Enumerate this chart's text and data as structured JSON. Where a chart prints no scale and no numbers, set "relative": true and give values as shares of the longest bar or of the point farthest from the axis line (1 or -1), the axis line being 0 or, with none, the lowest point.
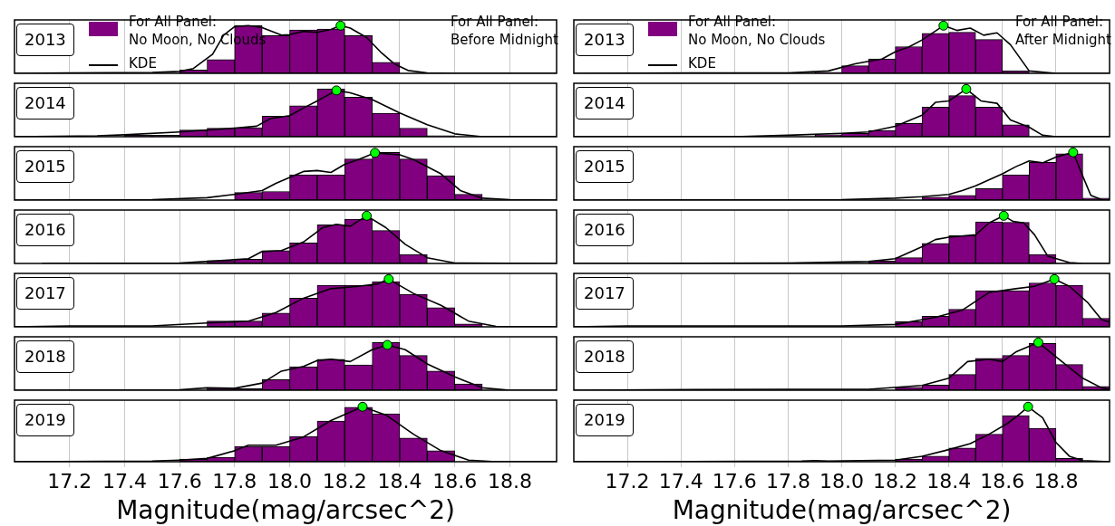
{
  "chart_data": [
    {
      "type": "histogram",
      "relative": true,
      "grid": "x",
      "tick_labels": false,
      "legend": "top left",
      "xlim": [
        17.0,
        18.97
      ],
      "xticks": [
        17.2,
        17.4,
        17.6,
        17.8,
        18,
        18.2,
        18.4,
        18.6,
        18.8
      ],
      "annotations": [
        "2013",
        "For All Panel:\nBefore Midnight"
      ],
      "bins": [
        17.6,
        17.7,
        17.8,
        17.9,
        18.0,
        18.1,
        18.2,
        18.3,
        18.4
      ],
      "series": [
        {
          "type": "histogram",
          "name": "For All Panel:\nNo Moon, No Clouds",
          "color": "#800080",
          "values": [
            0.07,
            0.29,
            1.0,
            0.79,
            0.91,
            0.93,
            0.79,
            0.23
          ]
        },
        {
          "type": "line",
          "name": "KDE",
          "color": "#000000",
          "line_style": "solid",
          "x": [
            17.0,
            17.2,
            17.5,
            17.6,
            17.65,
            17.72,
            17.76,
            17.8,
            17.85,
            17.9,
            17.97,
            18.0,
            18.05,
            18.1,
            18.15,
            18.185,
            18.22,
            18.28,
            18.33,
            18.38,
            18.43,
            18.5,
            18.6,
            18.97
          ],
          "values": [
            0,
            0.01,
            0.02,
            0.04,
            0.1,
            0.4,
            0.8,
            0.98,
            1.0,
            0.96,
            0.8,
            0.81,
            0.88,
            0.86,
            0.92,
            1.0,
            0.95,
            0.75,
            0.45,
            0.2,
            0.06,
            0.01,
            0,
            0
          ]
        },
        {
          "type": "scatter",
          "color": "#00ff00",
          "marker": "circle",
          "x": [
            18.185
          ],
          "values": [
            1.0
          ]
        }
      ]
    },
    {
      "type": "histogram",
      "relative": true,
      "grid": "x",
      "tick_labels": false,
      "xlim": [
        17.0,
        18.97
      ],
      "xticks": [
        17.2,
        17.4,
        17.6,
        17.8,
        18,
        18.2,
        18.4,
        18.6,
        18.8
      ],
      "annotations": [
        "2014"
      ],
      "bins": [
        17.4,
        17.5,
        17.6,
        17.7,
        17.8,
        17.9,
        18.0,
        18.1,
        18.2,
        18.3,
        18.4,
        18.5,
        18.6
      ],
      "series": [
        {
          "type": "histogram",
          "color": "#800080",
          "values": [
            0.03,
            0.03,
            0.14,
            0.18,
            0.19,
            0.43,
            0.65,
            1.0,
            0.83,
            0.49,
            0.18,
            0.02
          ]
        },
        {
          "type": "line",
          "color": "#000000",
          "line_style": "solid",
          "x": [
            17.0,
            17.3,
            17.4,
            17.6,
            17.8,
            17.88,
            17.93,
            18.0,
            18.05,
            18.1,
            18.17,
            18.22,
            18.3,
            18.4,
            18.5,
            18.6,
            18.7,
            18.97
          ],
          "values": [
            0,
            0.02,
            0.04,
            0.1,
            0.18,
            0.22,
            0.38,
            0.44,
            0.6,
            0.75,
            0.97,
            0.92,
            0.78,
            0.5,
            0.25,
            0.06,
            0,
            0
          ]
        },
        {
          "type": "scatter",
          "color": "#00ff00",
          "marker": "circle",
          "x": [
            18.17
          ],
          "values": [
            0.97
          ]
        }
      ]
    },
    {
      "type": "histogram",
      "relative": true,
      "grid": "x",
      "tick_labels": false,
      "xlim": [
        17.0,
        18.97
      ],
      "xticks": [
        17.2,
        17.4,
        17.6,
        17.8,
        18,
        18.2,
        18.4,
        18.6,
        18.8
      ],
      "annotations": [
        "2015"
      ],
      "bins": [
        17.8,
        17.9,
        18.0,
        18.1,
        18.2,
        18.3,
        18.4,
        18.5,
        18.6,
        18.7
      ],
      "series": [
        {
          "type": "histogram",
          "color": "#800080",
          "values": [
            0.16,
            0.18,
            0.53,
            0.53,
            0.86,
            1.0,
            0.86,
            0.51,
            0.12
          ]
        },
        {
          "type": "line",
          "color": "#000000",
          "line_style": "solid",
          "x": [
            17.0,
            17.5,
            17.7,
            17.8,
            17.9,
            17.95,
            18.05,
            18.1,
            18.15,
            18.2,
            18.25,
            18.31,
            18.4,
            18.45,
            18.55,
            18.62,
            18.7,
            18.8,
            18.97
          ],
          "values": [
            0,
            0.01,
            0.05,
            0.12,
            0.2,
            0.35,
            0.6,
            0.62,
            0.58,
            0.75,
            0.85,
            0.99,
            0.95,
            0.85,
            0.55,
            0.2,
            0.04,
            0.01,
            0
          ]
        },
        {
          "type": "scatter",
          "color": "#00ff00",
          "marker": "circle",
          "x": [
            18.31
          ],
          "values": [
            0.99
          ]
        }
      ]
    },
    {
      "type": "histogram",
      "relative": true,
      "grid": "x",
      "tick_labels": false,
      "xlim": [
        17.0,
        18.97
      ],
      "xticks": [
        17.2,
        17.4,
        17.6,
        17.8,
        18,
        18.2,
        18.4,
        18.6,
        18.8
      ],
      "annotations": [
        "2016"
      ],
      "bins": [
        17.7,
        17.8,
        17.9,
        18.0,
        18.1,
        18.2,
        18.3,
        18.4,
        18.5
      ],
      "series": [
        {
          "type": "histogram",
          "color": "#800080",
          "values": [
            0.06,
            0.09,
            0.27,
            0.43,
            0.81,
            0.93,
            0.69,
            0.19
          ]
        },
        {
          "type": "line",
          "color": "#000000",
          "line_style": "solid",
          "x": [
            17.1,
            17.6,
            17.75,
            17.85,
            17.9,
            17.97,
            18.05,
            18.12,
            18.17,
            18.22,
            18.28,
            18.35,
            18.42,
            18.5,
            18.6,
            18.97
          ],
          "values": [
            0,
            0.01,
            0.06,
            0.1,
            0.25,
            0.27,
            0.45,
            0.75,
            0.82,
            0.78,
            1.0,
            0.75,
            0.4,
            0.12,
            0.01,
            0
          ]
        },
        {
          "type": "scatter",
          "color": "#00ff00",
          "marker": "circle",
          "x": [
            18.28
          ],
          "values": [
            1.0
          ]
        }
      ]
    },
    {
      "type": "histogram",
      "relative": true,
      "grid": "x",
      "tick_labels": false,
      "xlim": [
        17.0,
        18.97
      ],
      "xticks": [
        17.2,
        17.4,
        17.6,
        17.8,
        18,
        18.2,
        18.4,
        18.6,
        18.8
      ],
      "annotations": [
        "2017"
      ],
      "bins": [
        17.7,
        17.8,
        17.9,
        18.0,
        18.1,
        18.2,
        18.3,
        18.4,
        18.5,
        18.6,
        18.7
      ],
      "series": [
        {
          "type": "histogram",
          "color": "#800080",
          "values": [
            0.12,
            0.12,
            0.29,
            0.6,
            0.87,
            0.87,
            0.95,
            0.68,
            0.4,
            0.06
          ]
        },
        {
          "type": "line",
          "color": "#000000",
          "line_style": "solid",
          "x": [
            17.0,
            17.2,
            17.5,
            17.7,
            17.85,
            17.95,
            18.05,
            18.15,
            18.25,
            18.32,
            18.36,
            18.45,
            18.55,
            18.65,
            18.75,
            18.97
          ],
          "values": [
            0,
            0.02,
            0.02,
            0.08,
            0.12,
            0.3,
            0.6,
            0.8,
            0.85,
            0.9,
            1.0,
            0.7,
            0.45,
            0.12,
            0.01,
            0
          ]
        },
        {
          "type": "scatter",
          "color": "#00ff00",
          "marker": "circle",
          "x": [
            18.36
          ],
          "values": [
            1.0
          ]
        }
      ]
    },
    {
      "type": "histogram",
      "relative": true,
      "grid": "x",
      "tick_labels": false,
      "xlim": [
        17.0,
        18.97
      ],
      "xticks": [
        17.2,
        17.4,
        17.6,
        17.8,
        18,
        18.2,
        18.4,
        18.6,
        18.8
      ],
      "annotations": [
        "2018"
      ],
      "bins": [
        17.7,
        17.8,
        17.9,
        18.0,
        18.1,
        18.2,
        18.3,
        18.4,
        18.5,
        18.6,
        18.7
      ],
      "series": [
        {
          "type": "histogram",
          "color": "#800080",
          "values": [
            0.04,
            0.03,
            0.22,
            0.49,
            0.65,
            0.53,
            1.0,
            0.73,
            0.4,
            0.13
          ]
        },
        {
          "type": "line",
          "color": "#000000",
          "line_style": "solid",
          "x": [
            17.0,
            17.6,
            17.7,
            17.8,
            17.9,
            17.97,
            18.05,
            18.1,
            18.15,
            18.22,
            18.3,
            18.355,
            18.42,
            18.5,
            18.6,
            18.7,
            18.8,
            18.97
          ],
          "values": [
            0,
            0.01,
            0.05,
            0.04,
            0.15,
            0.4,
            0.5,
            0.62,
            0.65,
            0.6,
            0.85,
            0.95,
            0.85,
            0.55,
            0.28,
            0.05,
            0,
            0
          ]
        },
        {
          "type": "scatter",
          "color": "#00ff00",
          "marker": "circle",
          "x": [
            18.355
          ],
          "values": [
            0.95
          ]
        }
      ]
    },
    {
      "type": "histogram",
      "relative": true,
      "grid": "x",
      "tick_labels": "x",
      "xlim": [
        17.0,
        18.97
      ],
      "xticks": [
        17.2,
        17.4,
        17.6,
        17.8,
        {
          "value": 18,
          "label": "18.0"
        },
        18.2,
        18.4,
        18.6,
        18.8
      ],
      "xlabel": "Magnitude(mag/arcsec^2)",
      "annotations": [
        "2019"
      ],
      "bins": [
        17.6,
        17.7,
        17.8,
        17.9,
        18.0,
        18.1,
        18.2,
        18.3,
        18.4,
        18.5,
        18.6
      ],
      "series": [
        {
          "type": "histogram",
          "color": "#800080",
          "values": [
            0.05,
            0.08,
            0.28,
            0.28,
            0.46,
            0.74,
            0.99,
            0.87,
            0.43,
            0.2
          ]
        },
        {
          "type": "line",
          "color": "#000000",
          "line_style": "solid",
          "x": [
            17.0,
            17.5,
            17.6,
            17.7,
            17.8,
            17.85,
            17.95,
            18.05,
            18.15,
            18.265,
            18.35,
            18.45,
            18.55,
            18.65,
            18.75,
            18.97
          ],
          "values": [
            0,
            0.01,
            0.03,
            0.06,
            0.2,
            0.3,
            0.3,
            0.45,
            0.75,
            1.0,
            0.85,
            0.5,
            0.2,
            0.03,
            0,
            0
          ]
        },
        {
          "type": "scatter",
          "color": "#00ff00",
          "marker": "circle",
          "x": [
            18.265
          ],
          "values": [
            1.0
          ]
        }
      ]
    },
    {
      "type": "histogram",
      "relative": true,
      "grid": "x",
      "tick_labels": false,
      "legend": "top left",
      "xlim": [
        17.0,
        19.0
      ],
      "xticks": [
        17.2,
        17.4,
        17.6,
        17.8,
        18,
        18.2,
        18.4,
        18.6,
        18.8
      ],
      "annotations": [
        "2013",
        "For All Panel:\nAfter Midnight"
      ],
      "bins": [
        17.9,
        18.0,
        18.1,
        18.2,
        18.3,
        18.4,
        18.5,
        18.6,
        18.7
      ],
      "series": [
        {
          "type": "histogram",
          "name": "For All Panel:\nNo Moon, No Clouds",
          "color": "#800080",
          "values": [
            0.02,
            0.16,
            0.3,
            0.56,
            0.84,
            0.86,
            0.71,
            0.05
          ]
        },
        {
          "type": "line",
          "name": "KDE",
          "color": "#000000",
          "line_style": "solid",
          "x": [
            17.0,
            17.5,
            17.8,
            17.95,
            18.05,
            18.1,
            18.15,
            18.2,
            18.25,
            18.3,
            18.38,
            18.43,
            18.48,
            18.53,
            18.58,
            18.63,
            18.7,
            18.8,
            19.0
          ],
          "values": [
            0,
            0.01,
            0.01,
            0.05,
            0.2,
            0.25,
            0.3,
            0.45,
            0.55,
            0.7,
            1.0,
            0.9,
            0.95,
            0.8,
            0.85,
            0.6,
            0.05,
            0,
            0
          ]
        },
        {
          "type": "scatter",
          "color": "#00ff00",
          "marker": "circle",
          "x": [
            18.38
          ],
          "values": [
            1.0
          ]
        }
      ]
    },
    {
      "type": "histogram",
      "relative": true,
      "grid": "x",
      "tick_labels": false,
      "xlim": [
        17.0,
        19.0
      ],
      "xticks": [
        17.2,
        17.4,
        17.6,
        17.8,
        18,
        18.2,
        18.4,
        18.6,
        18.8
      ],
      "annotations": [
        "2014"
      ],
      "bins": [
        17.9,
        18.0,
        18.1,
        18.2,
        18.3,
        18.4,
        18.5,
        18.6,
        18.7
      ],
      "series": [
        {
          "type": "histogram",
          "color": "#800080",
          "values": [
            0.04,
            0.07,
            0.13,
            0.28,
            0.62,
            0.86,
            0.62,
            0.25
          ]
        },
        {
          "type": "line",
          "color": "#000000",
          "line_style": "solid",
          "x": [
            17.0,
            17.6,
            17.8,
            18.0,
            18.1,
            18.2,
            18.3,
            18.35,
            18.4,
            18.465,
            18.52,
            18.58,
            18.63,
            18.7,
            18.75,
            18.8,
            19.0
          ],
          "values": [
            0,
            0,
            0.03,
            0.07,
            0.1,
            0.22,
            0.45,
            0.72,
            0.75,
            1.0,
            0.75,
            0.7,
            0.35,
            0.2,
            0.03,
            0,
            0
          ]
        },
        {
          "type": "scatter",
          "color": "#00ff00",
          "marker": "circle",
          "x": [
            18.465
          ],
          "values": [
            1.0
          ]
        }
      ]
    },
    {
      "type": "histogram",
      "relative": true,
      "grid": "x",
      "tick_labels": false,
      "xlim": [
        17.0,
        19.0
      ],
      "xticks": [
        17.2,
        17.4,
        17.6,
        17.8,
        18,
        18.2,
        18.4,
        18.6,
        18.8
      ],
      "annotations": [
        "2015"
      ],
      "bins": [
        18.3,
        18.4,
        18.5,
        18.6,
        18.7,
        18.8,
        18.9,
        19.0
      ],
      "series": [
        {
          "type": "histogram",
          "color": "#800080",
          "values": [
            0.06,
            0.1,
            0.24,
            0.53,
            0.79,
            0.97,
            0.04
          ]
        },
        {
          "type": "line",
          "color": "#000000",
          "line_style": "solid",
          "x": [
            17.0,
            18.0,
            18.2,
            18.3,
            18.4,
            18.45,
            18.5,
            18.6,
            18.65,
            18.7,
            18.75,
            18.8,
            18.864,
            18.9,
            18.93,
            18.97,
            19.0
          ],
          "values": [
            0,
            0.01,
            0.04,
            0.07,
            0.12,
            0.2,
            0.3,
            0.55,
            0.7,
            0.82,
            0.78,
            0.9,
            1.0,
            0.5,
            0.1,
            0.01,
            0
          ]
        },
        {
          "type": "scatter",
          "color": "#00ff00",
          "marker": "circle",
          "x": [
            18.864
          ],
          "values": [
            1.0
          ]
        }
      ]
    },
    {
      "type": "histogram",
      "relative": true,
      "grid": "x",
      "tick_labels": false,
      "xlim": [
        17.0,
        19.0
      ],
      "xticks": [
        17.2,
        17.4,
        17.6,
        17.8,
        18,
        18.2,
        18.4,
        18.6,
        18.8
      ],
      "annotations": [
        "2016"
      ],
      "bins": [
        18.1,
        18.2,
        18.3,
        18.4,
        18.5,
        18.6,
        18.7,
        18.8,
        18.9
      ],
      "series": [
        {
          "type": "histogram",
          "color": "#800080",
          "values": [
            0.05,
            0.12,
            0.42,
            0.58,
            0.87,
            0.86,
            0.19,
            0.01
          ]
        },
        {
          "type": "line",
          "color": "#000000",
          "line_style": "solid",
          "x": [
            17.0,
            17.8,
            18.1,
            18.2,
            18.3,
            18.35,
            18.4,
            18.5,
            18.55,
            18.605,
            18.64,
            18.68,
            18.72,
            18.77,
            18.85,
            18.9,
            19.0
          ],
          "values": [
            0,
            0.01,
            0.04,
            0.1,
            0.35,
            0.5,
            0.55,
            0.6,
            0.85,
            1.0,
            0.88,
            0.85,
            0.6,
            0.15,
            0.02,
            0,
            0
          ]
        },
        {
          "type": "scatter",
          "color": "#00ff00",
          "marker": "circle",
          "x": [
            18.605
          ],
          "values": [
            1.0
          ]
        }
      ]
    },
    {
      "type": "histogram",
      "relative": true,
      "grid": "x",
      "tick_labels": false,
      "xlim": [
        17.0,
        19.0
      ],
      "xticks": [
        17.2,
        17.4,
        17.6,
        17.8,
        18,
        18.2,
        18.4,
        18.6,
        18.8
      ],
      "annotations": [
        "2017"
      ],
      "bins": [
        18.2,
        18.3,
        18.4,
        18.5,
        18.6,
        18.7,
        18.8,
        18.9,
        19.0
      ],
      "series": [
        {
          "type": "histogram",
          "color": "#800080",
          "values": [
            0.11,
            0.22,
            0.37,
            0.76,
            0.76,
            0.92,
            0.87,
            0.18
          ]
        },
        {
          "type": "line",
          "color": "#000000",
          "line_style": "solid",
          "x": [
            17.0,
            17.2,
            17.5,
            18.0,
            18.2,
            18.35,
            18.45,
            18.55,
            18.65,
            18.72,
            18.794,
            18.85,
            18.92,
            18.97,
            19.0
          ],
          "values": [
            0,
            0.02,
            0.02,
            0.02,
            0.05,
            0.2,
            0.35,
            0.72,
            0.8,
            0.85,
            1.0,
            0.85,
            0.5,
            0.15,
            0.1
          ]
        },
        {
          "type": "scatter",
          "color": "#00ff00",
          "marker": "circle",
          "x": [
            18.794
          ],
          "values": [
            1.0
          ]
        }
      ]
    },
    {
      "type": "histogram",
      "relative": true,
      "grid": "x",
      "tick_labels": false,
      "xlim": [
        17.0,
        19.0
      ],
      "xticks": [
        17.2,
        17.4,
        17.6,
        17.8,
        18,
        18.2,
        18.4,
        18.6,
        18.8
      ],
      "annotations": [
        "2018"
      ],
      "bins": [
        18.2,
        18.3,
        18.4,
        18.5,
        18.6,
        18.7,
        18.8,
        18.9,
        19.0
      ],
      "series": [
        {
          "type": "histogram",
          "color": "#800080",
          "values": [
            0.06,
            0.11,
            0.33,
            0.67,
            0.73,
            0.98,
            0.54,
            0.08
          ]
        },
        {
          "type": "line",
          "color": "#000000",
          "line_style": "solid",
          "x": [
            17.0,
            17.8,
            18.1,
            18.3,
            18.4,
            18.47,
            18.55,
            18.6,
            18.65,
            18.734,
            18.8,
            18.9,
            18.97,
            19.0
          ],
          "values": [
            0,
            0.02,
            0.02,
            0.1,
            0.25,
            0.6,
            0.65,
            0.6,
            0.8,
            1.0,
            0.7,
            0.25,
            0.05,
            0.02
          ]
        },
        {
          "type": "scatter",
          "color": "#00ff00",
          "marker": "circle",
          "x": [
            18.734
          ],
          "values": [
            1.0
          ]
        }
      ]
    },
    {
      "type": "histogram",
      "relative": true,
      "grid": "x",
      "tick_labels": "x",
      "xlim": [
        17.0,
        19.0
      ],
      "xticks": [
        17.2,
        17.4,
        17.6,
        17.8,
        {
          "value": 18,
          "label": "18.0"
        },
        18.2,
        18.4,
        18.6,
        18.8
      ],
      "xlabel": "Magnitude(mag/arcsec^2)",
      "annotations": [
        "2019"
      ],
      "bins": [
        18.2,
        18.3,
        18.4,
        18.5,
        18.6,
        18.7,
        18.8,
        18.9
      ],
      "series": [
        {
          "type": "histogram",
          "color": "#800080",
          "values": [
            0.05,
            0.1,
            0.25,
            0.5,
            0.84,
            0.61,
            0.06
          ]
        },
        {
          "type": "line",
          "color": "#000000",
          "line_style": "solid",
          "x": [
            17.0,
            17.85,
            17.9,
            17.95,
            18.2,
            18.3,
            18.4,
            18.48,
            18.55,
            18.62,
            18.66,
            18.696,
            18.75,
            18.8,
            18.85,
            18.9,
            19.0
          ],
          "values": [
            0,
            0.01,
            0.02,
            0.01,
            0.03,
            0.1,
            0.22,
            0.33,
            0.5,
            0.7,
            0.85,
            1.0,
            0.8,
            0.35,
            0.1,
            0.02,
            0
          ]
        },
        {
          "type": "scatter",
          "color": "#00ff00",
          "marker": "circle",
          "x": [
            18.696
          ],
          "values": [
            1.0
          ]
        }
      ]
    }
  ]
}
